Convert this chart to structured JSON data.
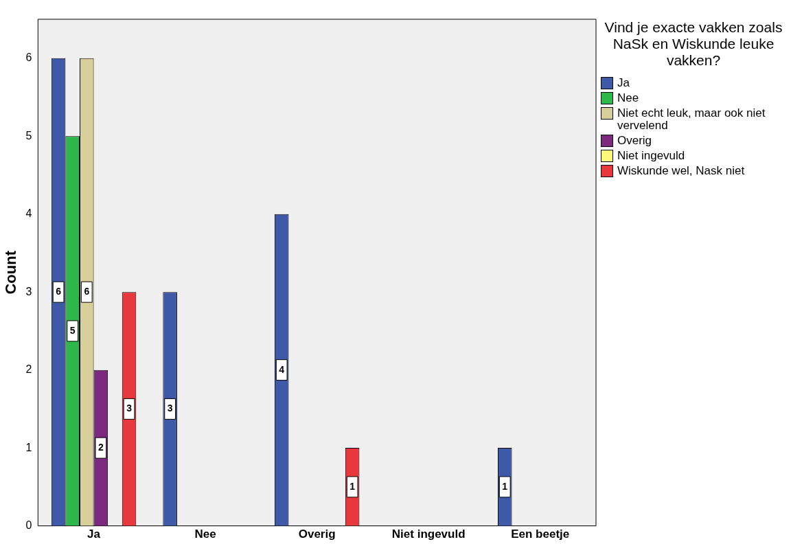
{
  "chart_data": {
    "type": "bar",
    "ylabel": "Count",
    "legend_title": "Vind je exacte vakken zoals NaSk en Wiskunde leuke vakken?",
    "legend": "right",
    "data_labels": true,
    "grid": false,
    "ylim": [
      0,
      6.5
    ],
    "yticks": [
      0,
      1,
      2,
      3,
      4,
      5,
      6
    ],
    "categories": [
      "Ja",
      "Nee",
      "Overig",
      "Niet ingevuld",
      "Een beetje"
    ],
    "series": [
      {
        "name": "Ja",
        "color": "#3e59a8",
        "values": [
          6,
          3,
          4,
          null,
          1
        ]
      },
      {
        "name": "Nee",
        "color": "#2db84a",
        "values": [
          5,
          null,
          null,
          null,
          null
        ]
      },
      {
        "name": "Niet echt leuk, maar ook niet vervelend",
        "color": "#d6cf9a",
        "values": [
          6,
          null,
          null,
          null,
          null
        ]
      },
      {
        "name": "Overig",
        "color": "#7b2a80",
        "values": [
          2,
          null,
          null,
          null,
          null
        ]
      },
      {
        "name": "Niet ingevuld",
        "color": "#fbf87a",
        "values": [
          null,
          null,
          null,
          null,
          null
        ]
      },
      {
        "name": "Wiskunde wel, Nask niet",
        "color": "#e8373d",
        "values": [
          3,
          null,
          1,
          null,
          null
        ]
      }
    ]
  }
}
